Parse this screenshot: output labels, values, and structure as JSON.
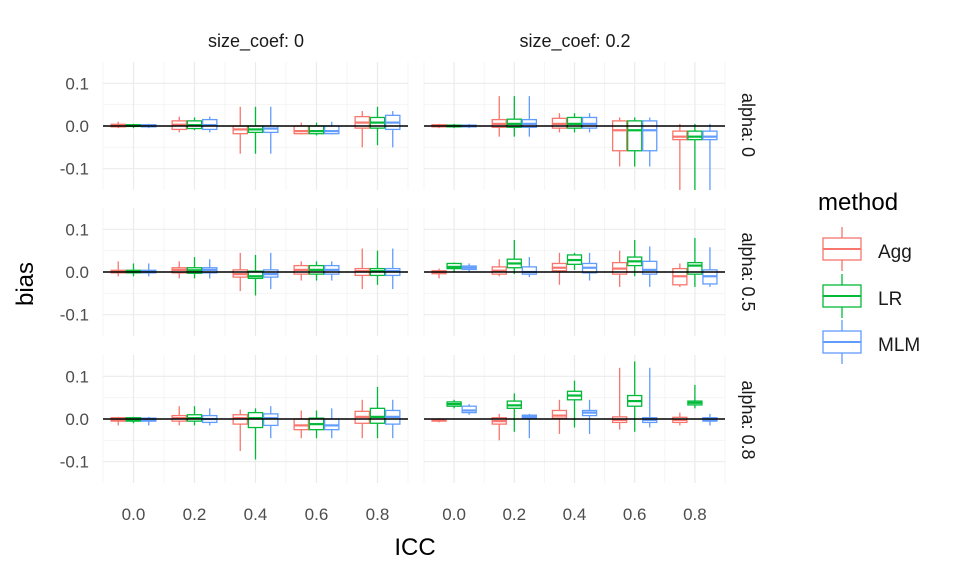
{
  "chart_data": {
    "type": "boxplot",
    "xlabel": "ICC",
    "ylabel": "bias",
    "x_categories": [
      "0.0",
      "0.2",
      "0.4",
      "0.6",
      "0.8"
    ],
    "ylim": [
      -0.15,
      0.15
    ],
    "y_ticks": [
      -0.1,
      0.0,
      0.1
    ],
    "y_tick_labels": [
      "-0.1",
      "0.0",
      "0.1"
    ],
    "reference_line_y": 0,
    "grid": true,
    "legend_position": "right",
    "col_facet_labels": [
      "size_coef: 0",
      "size_coef: 0.2"
    ],
    "row_facet_labels": [
      "alpha: 0",
      "alpha: 0.5",
      "alpha: 0.8"
    ],
    "legend": {
      "title": "method",
      "entries": [
        {
          "name": "Agg",
          "color": "#F8766D"
        },
        {
          "name": "LR",
          "color": "#00BA38"
        },
        {
          "name": "MLM",
          "color": "#619CFF"
        }
      ]
    },
    "panels": [
      {
        "row": 0,
        "col": 0,
        "boxes": {
          "Agg": [
            [
              -0.005,
              -0.002,
              0.001,
              0.004,
              0.01
            ],
            [
              -0.015,
              -0.008,
              0.003,
              0.012,
              0.022
            ],
            [
              -0.065,
              -0.018,
              -0.008,
              0,
              0.045
            ],
            [
              -0.02,
              -0.018,
              -0.012,
              0,
              0.008
            ],
            [
              -0.05,
              -0.005,
              0.008,
              0.022,
              0.035
            ]
          ],
          "LR": [
            [
              -0.005,
              -0.001,
              0.001,
              0.003,
              0.005
            ],
            [
              -0.01,
              -0.006,
              0.002,
              0.012,
              0.02
            ],
            [
              -0.065,
              -0.015,
              -0.008,
              0,
              0.045
            ],
            [
              -0.022,
              -0.018,
              -0.012,
              0,
              0.008
            ],
            [
              -0.045,
              -0.005,
              0.008,
              0.02,
              0.045
            ]
          ],
          "MLM": [
            [
              -0.005,
              -0.002,
              0.001,
              0.003,
              0.005
            ],
            [
              -0.015,
              -0.008,
              0.002,
              0.015,
              0.022
            ],
            [
              -0.065,
              -0.015,
              -0.006,
              0,
              0.045
            ],
            [
              -0.02,
              -0.018,
              -0.012,
              0,
              0.01
            ],
            [
              -0.05,
              -0.008,
              0.008,
              0.025,
              0.035
            ]
          ]
        }
      },
      {
        "row": 0,
        "col": 1,
        "boxes": {
          "Agg": [
            [
              -0.005,
              -0.002,
              0.001,
              0.003,
              0.005
            ],
            [
              -0.025,
              -0.003,
              0.005,
              0.015,
              0.07
            ],
            [
              -0.015,
              -0.005,
              0.005,
              0.018,
              0.03
            ],
            [
              -0.095,
              -0.058,
              -0.01,
              0.012,
              0.02
            ],
            [
              -0.15,
              -0.032,
              -0.025,
              -0.012,
              0.005
            ]
          ],
          "LR": [
            [
              -0.005,
              -0.002,
              0.001,
              0.002,
              0.005
            ],
            [
              -0.025,
              -0.003,
              0.005,
              0.016,
              0.07
            ],
            [
              -0.015,
              -0.005,
              0.005,
              0.02,
              0.03
            ],
            [
              -0.095,
              -0.058,
              -0.01,
              0.012,
              0.02
            ],
            [
              -0.15,
              -0.032,
              -0.025,
              -0.012,
              0.005
            ]
          ],
          "MLM": [
            [
              -0.005,
              -0.002,
              0.001,
              0.002,
              0.005
            ],
            [
              -0.025,
              -0.003,
              0.005,
              0.015,
              0.07
            ],
            [
              -0.015,
              -0.005,
              0.005,
              0.02,
              0.03
            ],
            [
              -0.095,
              -0.058,
              -0.01,
              0.012,
              0.02
            ],
            [
              -0.15,
              -0.032,
              -0.025,
              -0.012,
              0.005
            ]
          ]
        }
      },
      {
        "row": 1,
        "col": 0,
        "boxes": {
          "Agg": [
            [
              -0.01,
              -0.002,
              0.002,
              0.004,
              0.025
            ],
            [
              -0.015,
              -0.002,
              0.005,
              0.01,
              0.025
            ],
            [
              -0.045,
              -0.012,
              -0.005,
              0.005,
              0.045
            ],
            [
              -0.02,
              -0.005,
              0.005,
              0.015,
              0.025
            ],
            [
              -0.04,
              -0.008,
              0.002,
              0.008,
              0.055
            ]
          ],
          "LR": [
            [
              -0.01,
              -0.002,
              0.002,
              0.004,
              0.02
            ],
            [
              -0.015,
              -0.003,
              0.004,
              0.01,
              0.035
            ],
            [
              -0.055,
              -0.015,
              -0.01,
              0.002,
              0.04
            ],
            [
              -0.02,
              -0.005,
              0.005,
              0.015,
              0.025
            ],
            [
              -0.03,
              -0.008,
              0.002,
              0.008,
              0.05
            ]
          ],
          "MLM": [
            [
              -0.01,
              -0.002,
              0.002,
              0.004,
              0.02
            ],
            [
              -0.015,
              -0.002,
              0.005,
              0.01,
              0.03
            ],
            [
              -0.04,
              -0.012,
              -0.005,
              0.005,
              0.045
            ],
            [
              -0.02,
              -0.005,
              0.005,
              0.015,
              0.025
            ],
            [
              -0.04,
              -0.008,
              0.002,
              0.008,
              0.055
            ]
          ]
        }
      },
      {
        "row": 1,
        "col": 1,
        "boxes": {
          "Agg": [
            [
              -0.015,
              -0.004,
              0,
              0.003,
              0.008
            ],
            [
              -0.01,
              -0.005,
              0.003,
              0.012,
              0.03
            ],
            [
              -0.03,
              0.003,
              0.01,
              0.02,
              0.045
            ],
            [
              -0.035,
              -0.005,
              0.008,
              0.022,
              0.05
            ],
            [
              -0.035,
              -0.03,
              -0.01,
              0.008,
              0.02
            ]
          ],
          "LR": [
            [
              0,
              0.008,
              0.012,
              0.02,
              0.022
            ],
            [
              -0.005,
              0.01,
              0.02,
              0.03,
              0.075
            ],
            [
              0.005,
              0.018,
              0.028,
              0.04,
              0.045
            ],
            [
              -0.01,
              0.015,
              0.025,
              0.035,
              0.075
            ],
            [
              -0.035,
              -0.005,
              0.015,
              0.022,
              0.08
            ]
          ],
          "MLM": [
            [
              0,
              0.006,
              0.01,
              0.014,
              0.02
            ],
            [
              -0.012,
              -0.005,
              0,
              0.012,
              0.035
            ],
            [
              -0.02,
              -0.002,
              0.01,
              0.02,
              0.045
            ],
            [
              -0.035,
              -0.005,
              0.005,
              0.025,
              0.06
            ],
            [
              -0.035,
              -0.028,
              -0.01,
              0.005,
              0.058
            ]
          ]
        }
      },
      {
        "row": 2,
        "col": 0,
        "boxes": {
          "Agg": [
            [
              -0.015,
              -0.005,
              -0.002,
              0.003,
              0.005
            ],
            [
              -0.015,
              -0.005,
              0.002,
              0.008,
              0.03
            ],
            [
              -0.075,
              -0.012,
              0.002,
              0.01,
              0.022
            ],
            [
              -0.045,
              -0.025,
              -0.015,
              0,
              0.02
            ],
            [
              -0.045,
              -0.01,
              0.005,
              0.018,
              0.045
            ]
          ],
          "LR": [
            [
              -0.01,
              -0.005,
              -0.002,
              0.003,
              0.005
            ],
            [
              -0.015,
              -0.005,
              0.002,
              0.01,
              0.03
            ],
            [
              -0.095,
              -0.02,
              0.002,
              0.015,
              0.025
            ],
            [
              -0.045,
              -0.025,
              -0.012,
              0.002,
              0.02
            ],
            [
              -0.045,
              -0.01,
              0.005,
              0.025,
              0.075
            ]
          ],
          "MLM": [
            [
              -0.015,
              -0.005,
              -0.002,
              0.002,
              0.005
            ],
            [
              -0.015,
              -0.008,
              0,
              0.008,
              0.025
            ],
            [
              -0.045,
              -0.015,
              0.002,
              0.012,
              0.03
            ],
            [
              -0.045,
              -0.025,
              -0.015,
              0,
              0.025
            ],
            [
              -0.045,
              -0.012,
              0.005,
              0.02,
              0.045
            ]
          ]
        }
      },
      {
        "row": 2,
        "col": 1,
        "boxes": {
          "Agg": [
            [
              -0.008,
              -0.005,
              -0.003,
              -0.001,
              0.002
            ],
            [
              -0.05,
              -0.012,
              -0.005,
              0.003,
              0.012
            ],
            [
              -0.035,
              0.002,
              0.008,
              0.02,
              0.045
            ],
            [
              -0.025,
              -0.008,
              -0.002,
              0.005,
              0.12
            ],
            [
              -0.015,
              -0.008,
              -0.002,
              0.004,
              0.015
            ]
          ],
          "LR": [
            [
              0.025,
              0.03,
              0.035,
              0.04,
              0.045
            ],
            [
              -0.03,
              0.025,
              0.032,
              0.042,
              0.06
            ],
            [
              -0.02,
              0.045,
              0.055,
              0.065,
              0.09
            ],
            [
              -0.03,
              0.03,
              0.042,
              0.055,
              0.135
            ],
            [
              0.025,
              0.033,
              0.038,
              0.042,
              0.08
            ]
          ],
          "MLM": [
            [
              0.01,
              0.015,
              0.02,
              0.03,
              0.035
            ],
            [
              -0.045,
              0.002,
              0.006,
              0.009,
              0.012
            ],
            [
              -0.035,
              0.008,
              0.015,
              0.02,
              0.045
            ],
            [
              -0.02,
              -0.008,
              -0.002,
              0.003,
              0.12
            ],
            [
              -0.015,
              -0.005,
              -0.002,
              0.003,
              0.012
            ]
          ]
        }
      }
    ]
  }
}
